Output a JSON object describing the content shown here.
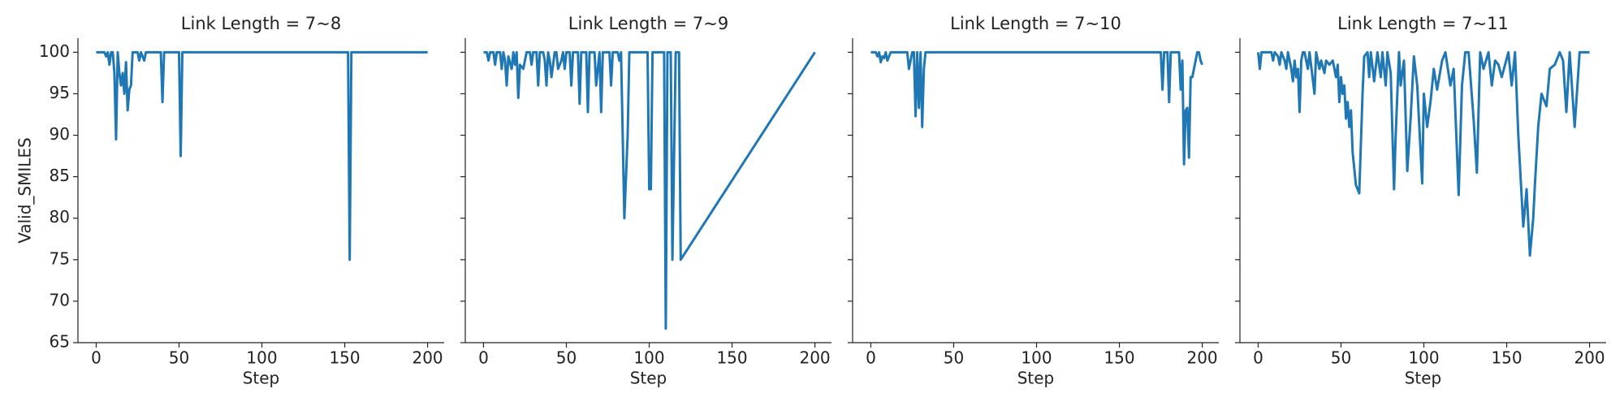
{
  "chart_data": [
    {
      "type": "line",
      "title": "Link Length = 7~8",
      "xlabel": "Step",
      "ylabel": "Valid_SMILES",
      "xlim": [
        -11,
        210
      ],
      "ylim": [
        65,
        101.7
      ],
      "xticks": [
        0,
        50,
        100,
        150,
        200
      ],
      "yticks": [
        65,
        70,
        75,
        80,
        85,
        90,
        95,
        100
      ],
      "series": [
        {
          "color": "#1f77b4",
          "x": [
            0,
            5,
            6,
            7,
            8,
            9,
            10,
            11,
            12,
            13,
            14,
            15,
            16,
            17,
            18,
            19,
            20,
            21,
            22,
            25,
            26,
            27,
            29,
            30,
            39,
            40,
            41,
            50,
            51,
            52,
            152,
            153,
            154,
            200
          ],
          "values": [
            100,
            100,
            99.5,
            100,
            98.5,
            100,
            100,
            97.5,
            89.5,
            100,
            97.5,
            96,
            97.5,
            95,
            98.8,
            93,
            95.5,
            96,
            100,
            100,
            99,
            100,
            99,
            100,
            100,
            94,
            100,
            100,
            87.5,
            100,
            100,
            75,
            100,
            100
          ]
        }
      ]
    },
    {
      "type": "line",
      "title": "Link Length = 7~9",
      "xlabel": "Step",
      "xlim": [
        -11,
        210
      ],
      "ylim": [
        65,
        101.7
      ],
      "xticks": [
        0,
        50,
        100,
        150,
        200
      ],
      "yticks": [
        65,
        70,
        75,
        80,
        85,
        90,
        95,
        100
      ],
      "series": [
        {
          "color": "#1f77b4",
          "x": [
            0,
            2,
            3,
            4,
            6,
            7,
            8,
            10,
            11,
            12,
            13,
            14,
            15,
            17,
            18,
            19,
            20,
            21,
            22,
            24,
            25,
            26,
            28,
            29,
            30,
            32,
            33,
            34,
            36,
            37,
            38,
            39,
            40,
            41,
            43,
            44,
            45,
            47,
            48,
            49,
            50,
            52,
            53,
            54,
            57,
            58,
            59,
            62,
            63,
            64,
            67,
            68,
            70,
            71,
            72,
            76,
            77,
            78,
            81,
            82,
            83,
            85,
            87,
            88,
            99,
            100,
            101,
            102,
            109,
            110,
            111,
            112,
            113,
            114,
            116,
            117,
            118,
            119,
            200
          ],
          "values": [
            100,
            100,
            99,
            100,
            100,
            98.5,
            100,
            100,
            98,
            100,
            99,
            96,
            99.5,
            98,
            100,
            98.5,
            100,
            94.5,
            98.5,
            98,
            99,
            100,
            100,
            98.5,
            100,
            100,
            96,
            100,
            100,
            99,
            96,
            100,
            99,
            97,
            100,
            100,
            98,
            99,
            100,
            98,
            100,
            100,
            96,
            100,
            100,
            93.8,
            100,
            100,
            92.8,
            100,
            100,
            96,
            100,
            92.8,
            100,
            100,
            96,
            100,
            100,
            99,
            100,
            80,
            90,
            100,
            100,
            83.5,
            83.5,
            100,
            100,
            66.7,
            100,
            100,
            100,
            75,
            100,
            100,
            100,
            75,
            100
          ]
        }
      ]
    },
    {
      "type": "line",
      "title": "Link Length = 7~10",
      "xlabel": "Step",
      "xlim": [
        -11,
        210
      ],
      "ylim": [
        65,
        101.7
      ],
      "xticks": [
        0,
        50,
        100,
        150,
        200
      ],
      "yticks": [
        65,
        70,
        75,
        80,
        85,
        90,
        95,
        100
      ],
      "series": [
        {
          "color": "#1f77b4",
          "x": [
            0,
            3,
            4,
            5,
            6,
            7,
            8,
            9,
            10,
            12,
            22,
            23,
            25,
            26,
            27,
            28,
            29,
            30,
            31,
            32,
            33,
            175,
            176,
            177,
            179,
            180,
            181,
            186,
            187,
            188,
            189,
            190,
            191,
            192,
            193,
            194,
            195,
            197,
            198,
            199,
            200
          ],
          "values": [
            100,
            100,
            99.5,
            100,
            98.8,
            99.5,
            99.3,
            100,
            99,
            100,
            100,
            98,
            100,
            100,
            92.3,
            100,
            93.3,
            100,
            91,
            98,
            100,
            100,
            95.5,
            100,
            100,
            94,
            100,
            100,
            95.5,
            99,
            86.5,
            93,
            93.3,
            87.3,
            97,
            97,
            98,
            100,
            100,
            99,
            98.5
          ]
        }
      ]
    },
    {
      "type": "line",
      "title": "Link Length = 7~11",
      "xlabel": "Step",
      "xlim": [
        -11,
        210
      ],
      "ylim": [
        65,
        101.7
      ],
      "xticks": [
        0,
        50,
        100,
        150,
        200
      ],
      "yticks": [
        65,
        70,
        75,
        80,
        85,
        90,
        95,
        100
      ],
      "series": [
        {
          "color": "#1f77b4",
          "x": [
            0,
            1,
            2,
            3,
            8,
            9,
            10,
            12,
            13,
            14,
            16,
            17,
            18,
            20,
            21,
            22,
            23,
            24,
            25,
            26,
            27,
            28,
            30,
            31,
            34,
            35,
            37,
            38,
            40,
            41,
            43,
            45,
            47,
            48,
            49,
            50,
            51,
            52,
            53,
            54,
            55,
            56,
            57,
            58,
            59,
            61,
            62,
            63,
            64,
            66,
            67,
            68,
            70,
            72,
            74,
            75,
            77,
            78,
            80,
            82,
            83,
            85,
            86,
            88,
            90,
            92,
            94,
            96,
            99,
            100,
            102,
            104,
            106,
            108,
            111,
            113,
            116,
            118,
            121,
            123,
            125,
            127,
            130,
            132,
            134,
            136,
            139,
            141,
            143,
            145,
            147,
            149,
            151,
            153,
            155,
            157,
            160,
            162,
            164,
            166,
            167,
            169,
            171,
            174,
            176,
            179,
            182,
            184,
            186,
            188,
            191,
            194,
            200
          ],
          "values": [
            100,
            98,
            100,
            100,
            100,
            99,
            100,
            99.5,
            98.5,
            100,
            99,
            98,
            100,
            98,
            96.5,
            99,
            97,
            98,
            92.8,
            99,
            100,
            100,
            98,
            100,
            95,
            100,
            98,
            99,
            97.5,
            99,
            98.5,
            99,
            97,
            98.5,
            94,
            97,
            95,
            96,
            92,
            94,
            91,
            93,
            88,
            86,
            84,
            83,
            89,
            95,
            99.5,
            100,
            97,
            100,
            96.5,
            100,
            97,
            100,
            96,
            100,
            97.5,
            83.5,
            90,
            100,
            96,
            99,
            85.7,
            92,
            99.5,
            96,
            84.2,
            95,
            91,
            94,
            98,
            95.5,
            99,
            100,
            96,
            98,
            82.8,
            96,
            100,
            100,
            92,
            85.5,
            100,
            98,
            100,
            96,
            99,
            98.5,
            97,
            98.5,
            100,
            96,
            100,
            90,
            79,
            83.5,
            75.5,
            80,
            84,
            91,
            95,
            93.5,
            98,
            98.5,
            100,
            99,
            92.8,
            100,
            91,
            100,
            100
          ]
        }
      ]
    }
  ]
}
